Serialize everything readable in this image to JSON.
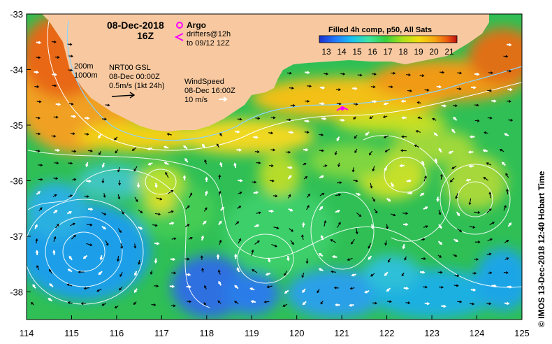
{
  "header": {
    "date": "08-Dec-2018",
    "hour": "16Z"
  },
  "argo": {
    "label": "Argo",
    "drifters_line1": "drifters@12h",
    "drifters_line2": "to 09/12 12Z",
    "symbol_color": "#ff00ff"
  },
  "isobaths": {
    "depth1": "200m",
    "depth2": "1000m"
  },
  "current_key": {
    "line1": "NRT00 GSL",
    "line2": "08-Dec 00:00Z",
    "line3": "0.5m/s (1kt 24h)"
  },
  "wind_key": {
    "line1": "WindSpeed",
    "line2": "08-Dec 16:00Z",
    "line3": "10 m/s"
  },
  "colorbar": {
    "title": "Filled 4h comp, p50, All Sats",
    "ticks": [
      "13",
      "14",
      "15",
      "16",
      "17",
      "18",
      "19",
      "20",
      "21"
    ],
    "colors": [
      "#1a2fcf",
      "#1f7bff",
      "#17c4f0",
      "#3ee5a0",
      "#36cf3c",
      "#a8e01a",
      "#f2dd10",
      "#f5a512",
      "#ee5a12",
      "#c01010"
    ]
  },
  "axes": {
    "lat_labels": [
      "-33",
      "-34",
      "-35",
      "-36",
      "-37",
      "-38"
    ],
    "lon_labels": [
      "114",
      "115",
      "116",
      "117",
      "118",
      "119",
      "120",
      "121",
      "122",
      "123",
      "124",
      "125"
    ]
  },
  "credit": "©  IMOS 13-Dec-2018 12:40 Hobart Time",
  "colors": {
    "land": "#f8c9a0",
    "frame": "#000000",
    "contour": "#ffffff",
    "isobath_shallow": "#8ad4ff",
    "isobath_deep": "#ffffff"
  }
}
